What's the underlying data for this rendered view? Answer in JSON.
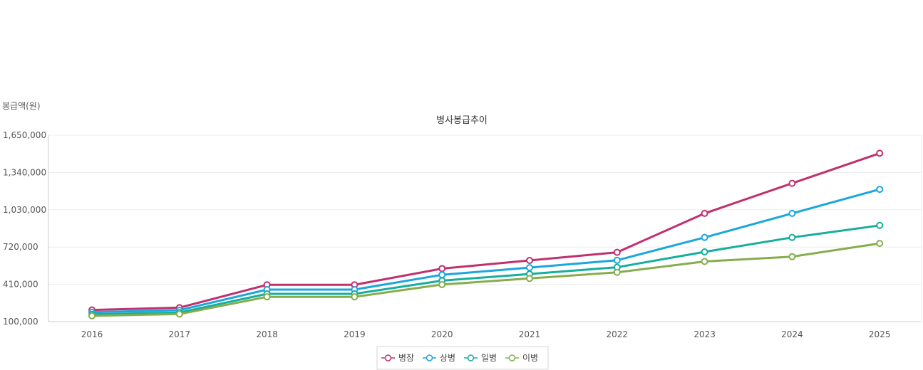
{
  "chart_data": {
    "type": "line",
    "title": "병사봉급추이",
    "ylabel": "봉급액(원)",
    "xlabel": "",
    "categories": [
      "2016",
      "2017",
      "2018",
      "2019",
      "2020",
      "2021",
      "2022",
      "2023",
      "2024",
      "2025"
    ],
    "ylim": [
      100000,
      1650000
    ],
    "yticks": [
      100000,
      410000,
      720000,
      1030000,
      1340000,
      1650000
    ],
    "ytick_labels": [
      "100,000",
      "410,000",
      "720,000",
      "1,030,000",
      "1,340,000",
      "1,650,000"
    ],
    "grid": true,
    "legend_position": "bottom",
    "series": [
      {
        "name": "병장",
        "color": "#c0306f",
        "values": [
          197000,
          216000,
          406000,
          406000,
          541000,
          609000,
          676000,
          1000000,
          1250000,
          1500000
        ]
      },
      {
        "name": "상병",
        "color": "#1ba6dd",
        "values": [
          178000,
          195000,
          366000,
          366000,
          489000,
          549000,
          610000,
          800000,
          1000000,
          1200000
        ]
      },
      {
        "name": "일병",
        "color": "#16ae9c",
        "values": [
          161000,
          176000,
          331000,
          331000,
          441000,
          496000,
          552000,
          680000,
          800000,
          900000
        ]
      },
      {
        "name": "이병",
        "color": "#86ad4b",
        "values": [
          148000,
          163000,
          306000,
          306000,
          408000,
          459000,
          510000,
          600000,
          640000,
          750000
        ]
      }
    ]
  }
}
